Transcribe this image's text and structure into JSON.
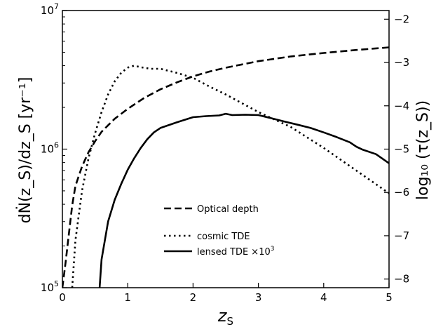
{
  "chart_data": {
    "type": "line",
    "xlabel": "z",
    "xlabel_sub": "S",
    "ylabel_left": "dṄ(z_S)/dz_S [yr⁻¹]",
    "ylabel_right": "log₁₀ (τ(z_S))",
    "x_ticks": [
      "0",
      "1",
      "2",
      "3",
      "4",
      "5"
    ],
    "y_left_ticks": [
      {
        "base": "10",
        "exp": "5",
        "value": 100000
      },
      {
        "base": "10",
        "exp": "6",
        "value": 1000000
      },
      {
        "base": "10",
        "exp": "7",
        "value": 10000000
      }
    ],
    "y_right_ticks": [
      "−8",
      "−7",
      "−6",
      "−5",
      "−4",
      "−3",
      "−2"
    ],
    "xlim": [
      0,
      5
    ],
    "ylim_left": [
      100000,
      10000000
    ],
    "ylim_right": [
      -8.2,
      -1.8
    ],
    "y_left_scale": "log",
    "grid": false,
    "legend_location": "center",
    "series": [
      {
        "name": "Optical depth",
        "axis": "right",
        "style": "dashed",
        "color": "#000000",
        "x": [
          0.0,
          0.05,
          0.1,
          0.15,
          0.2,
          0.3,
          0.4,
          0.5,
          0.6,
          0.7,
          0.8,
          1.0,
          1.25,
          1.5,
          1.75,
          2.0,
          2.25,
          2.5,
          3.0,
          3.5,
          4.0,
          4.5,
          5.0
        ],
        "values": [
          -8.2,
          -7.6,
          -6.95,
          -6.3,
          -5.85,
          -5.4,
          -5.07,
          -4.82,
          -4.6,
          -4.45,
          -4.3,
          -4.07,
          -3.82,
          -3.62,
          -3.46,
          -3.32,
          -3.21,
          -3.12,
          -2.97,
          -2.86,
          -2.78,
          -2.71,
          -2.65
        ]
      },
      {
        "name": "cosmic TDE",
        "axis": "left",
        "style": "dotted",
        "color": "#000000",
        "x": [
          0.15,
          0.2,
          0.3,
          0.4,
          0.5,
          0.6,
          0.7,
          0.8,
          0.9,
          1.0,
          1.1,
          1.2,
          1.35,
          1.5,
          1.75,
          2.0,
          2.25,
          2.5,
          3.0,
          3.5,
          4.0,
          4.5,
          5.0
        ],
        "values": [
          100000,
          220000,
          500000,
          860000,
          1300000,
          1850000,
          2480000,
          3080000,
          3550000,
          3870000,
          4000000,
          3900000,
          3800000,
          3800000,
          3550000,
          3270000,
          2830000,
          2480000,
          1850000,
          1440000,
          1020000,
          700000,
          480000
        ]
      },
      {
        "name": "lensed TDE ×10³",
        "axis": "left",
        "style": "solid",
        "color": "#000000",
        "x": [
          0.57,
          0.6,
          0.7,
          0.8,
          0.9,
          1.0,
          1.1,
          1.2,
          1.3,
          1.4,
          1.5,
          1.75,
          2.0,
          2.2,
          2.4,
          2.5,
          2.6,
          2.8,
          3.0,
          3.2,
          3.4,
          3.6,
          3.8,
          4.0,
          4.2,
          4.4,
          4.5,
          4.6,
          4.8,
          5.0
        ],
        "values": [
          100000,
          160000,
          300000,
          430000,
          560000,
          710000,
          860000,
          1020000,
          1180000,
          1320000,
          1420000,
          1560000,
          1700000,
          1730000,
          1750000,
          1800000,
          1760000,
          1770000,
          1760000,
          1670000,
          1580000,
          1500000,
          1420000,
          1320000,
          1220000,
          1120000,
          1040000,
          990000,
          920000,
          790000
        ]
      }
    ]
  },
  "legend": {
    "items": [
      {
        "label": "Optical depth",
        "style": "dashed"
      },
      {
        "label": "cosmic TDE",
        "style": "dotted"
      },
      {
        "label": "lensed TDE ×10",
        "sup": "3",
        "style": "solid"
      }
    ]
  }
}
